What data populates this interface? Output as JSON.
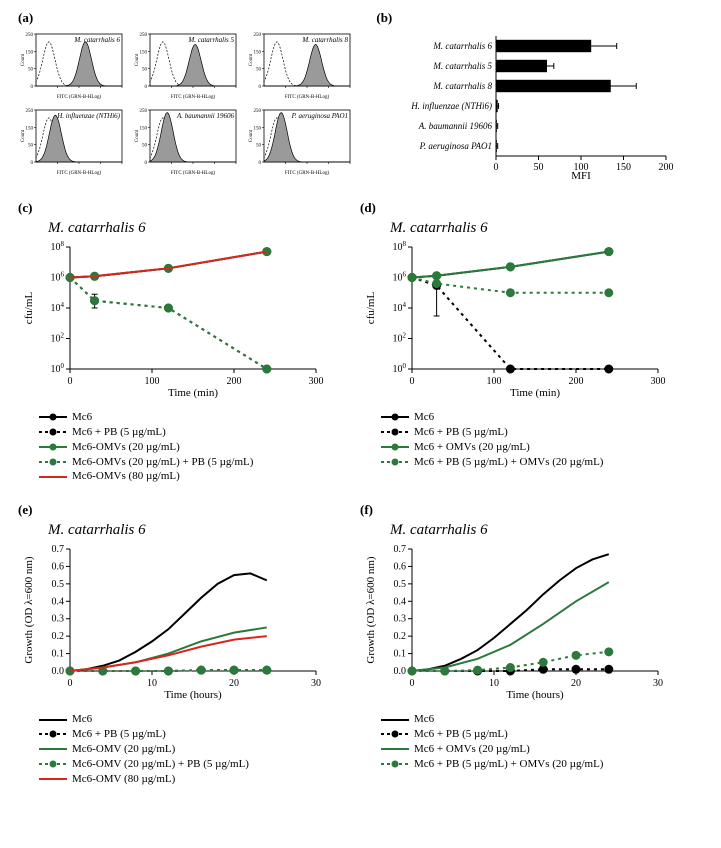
{
  "colors": {
    "black": "#000000",
    "green": "#2b7a3b",
    "red": "#d7261e",
    "hist_fill": "#9a9a9a",
    "hist_stroke": "#000000",
    "axis": "#000000",
    "bar_fill": "#000000"
  },
  "panel_labels": {
    "a": "(a)",
    "b": "(b)",
    "c": "(c)",
    "d": "(d)",
    "e": "(e)",
    "f": "(f)"
  },
  "panel_a": {
    "xlabel": "FITC (GRN-B-HLog)",
    "ylabel": "Count",
    "yticks": [
      "0",
      "50",
      "150",
      "250"
    ],
    "xticks_log": [
      1,
      2,
      3,
      4
    ],
    "strains": [
      {
        "name": "M. catarrhalis 6",
        "italic": true,
        "peak_signal_log": 2.3,
        "peak_signal_height": 0.85,
        "ctrl_log": 0.6
      },
      {
        "name": "M. catarrhalis 5",
        "italic": true,
        "peak_signal_log": 2.1,
        "peak_signal_height": 0.8,
        "ctrl_log": 0.6
      },
      {
        "name": "M. catarrhalis 8",
        "italic": true,
        "peak_signal_log": 2.4,
        "peak_signal_height": 0.8,
        "ctrl_log": 0.6
      },
      {
        "name": "H. influenzae (NTHi6)",
        "italic": true,
        "peak_signal_log": 0.9,
        "peak_signal_height": 0.9,
        "ctrl_log": 0.6
      },
      {
        "name": "A. baumannii 19606",
        "italic": true,
        "peak_signal_log": 0.8,
        "peak_signal_height": 0.95,
        "ctrl_log": 0.6
      },
      {
        "name": "P. aeruginosa PAO1",
        "italic": true,
        "peak_signal_log": 0.8,
        "peak_signal_height": 0.95,
        "ctrl_log": 0.6
      }
    ]
  },
  "panel_b": {
    "xlabel": "MFI",
    "xlim": [
      0,
      200
    ],
    "xticks": [
      0,
      50,
      100,
      150,
      200
    ],
    "categories": [
      {
        "name": "M. catarrhalis 6",
        "mfi": 112,
        "err": 30,
        "italic": true
      },
      {
        "name": "M. catarrhalis 5",
        "mfi": 60,
        "err": 8,
        "italic": true
      },
      {
        "name": "M. catarrhalis 8",
        "mfi": 135,
        "err": 30,
        "italic": true
      },
      {
        "name": "H. influenzae (NTHi6)",
        "mfi": 2,
        "err": 1,
        "italic": true
      },
      {
        "name": "A. baumannii 19606",
        "mfi": 1,
        "err": 1,
        "italic": true
      },
      {
        "name": "P. aeruginosa PAO1",
        "mfi": 1,
        "err": 1,
        "italic": true
      }
    ]
  },
  "panel_c": {
    "title": "M. catarrhalis 6",
    "xlabel": "Time (min)",
    "ylabel": "cfu/mL",
    "xlim": [
      0,
      300
    ],
    "xticks": [
      0,
      100,
      200,
      300
    ],
    "ylog": true,
    "ylim_exp": [
      0,
      8
    ],
    "yticks_exp": [
      0,
      2,
      4,
      6,
      8
    ],
    "series": [
      {
        "key": "mc6",
        "label": "Mc6",
        "color": "black",
        "dash": false,
        "marker": "circle",
        "points": [
          {
            "x": 0,
            "y": 1000000.0
          },
          {
            "x": 30,
            "y": 1200000.0
          },
          {
            "x": 120,
            "y": 4000000.0
          },
          {
            "x": 240,
            "y": 50000000.0
          }
        ]
      },
      {
        "key": "mc6_pb",
        "label": "Mc6 + PB (5 µg/mL)",
        "color": "black",
        "dash": true,
        "marker": "circle",
        "points": [
          {
            "x": 0,
            "y": 1000000.0
          },
          {
            "x": 30,
            "y": 30000.0,
            "ylo": 10000.0,
            "yhi": 80000.0
          },
          {
            "x": 120,
            "y": 10000.0
          },
          {
            "x": 240,
            "y": 1.0
          }
        ]
      },
      {
        "key": "mc6_omv20",
        "label": "Mc6-OMVs (20 µg/mL)",
        "color": "green",
        "dash": false,
        "marker": "circle",
        "points": [
          {
            "x": 0,
            "y": 1000000.0
          },
          {
            "x": 30,
            "y": 1200000.0
          },
          {
            "x": 120,
            "y": 4000000.0
          },
          {
            "x": 240,
            "y": 50000000.0
          }
        ]
      },
      {
        "key": "mc6_omv20_pb",
        "label": "Mc6-OMVs (20 µg/mL) + PB (5 µg/mL)",
        "color": "green",
        "dash": true,
        "marker": "circle",
        "points": [
          {
            "x": 0,
            "y": 1000000.0
          },
          {
            "x": 30,
            "y": 30000.0
          },
          {
            "x": 120,
            "y": 10000.0
          },
          {
            "x": 240,
            "y": 1.0
          }
        ]
      },
      {
        "key": "mc6_omv80",
        "label": "Mc6-OMVs (80 µg/mL)",
        "color": "red",
        "dash": false,
        "marker": "none",
        "points": [
          {
            "x": 0,
            "y": 1000000.0
          },
          {
            "x": 30,
            "y": 1200000.0
          },
          {
            "x": 120,
            "y": 4000000.0
          },
          {
            "x": 240,
            "y": 50000000.0
          }
        ]
      }
    ]
  },
  "panel_d": {
    "title": "M. catarrhalis 6",
    "xlabel": "Time (min)",
    "ylabel": "cfu/mL",
    "xlim": [
      0,
      300
    ],
    "xticks": [
      0,
      100,
      200,
      300
    ],
    "ylog": true,
    "ylim_exp": [
      0,
      8
    ],
    "yticks_exp": [
      0,
      2,
      4,
      6,
      8
    ],
    "series": [
      {
        "key": "mc6",
        "label": "Mc6",
        "color": "black",
        "dash": false,
        "marker": "circle",
        "points": [
          {
            "x": 0,
            "y": 1000000.0
          },
          {
            "x": 30,
            "y": 1300000.0
          },
          {
            "x": 120,
            "y": 5000000.0
          },
          {
            "x": 240,
            "y": 50000000.0
          }
        ]
      },
      {
        "key": "mc6_pb",
        "label": "Mc6 + PB (5 µg/mL)",
        "color": "black",
        "dash": true,
        "marker": "circle",
        "points": [
          {
            "x": 0,
            "y": 1000000.0
          },
          {
            "x": 30,
            "y": 300000.0,
            "ylo": 3000.0,
            "yhi": 1000000.0
          },
          {
            "x": 120,
            "y": 1.0
          },
          {
            "x": 240,
            "y": 1.0
          }
        ]
      },
      {
        "key": "mc6_omv",
        "label": "Mc6 + OMVs (20 µg/mL)",
        "color": "green",
        "dash": false,
        "marker": "circle",
        "points": [
          {
            "x": 0,
            "y": 1000000.0
          },
          {
            "x": 30,
            "y": 1300000.0
          },
          {
            "x": 120,
            "y": 5000000.0
          },
          {
            "x": 240,
            "y": 50000000.0
          }
        ]
      },
      {
        "key": "mc6_pb_omv",
        "label": "Mc6 + PB (5 µg/mL) + OMVs (20 µg/mL)",
        "color": "green",
        "dash": true,
        "marker": "circle",
        "points": [
          {
            "x": 0,
            "y": 1000000.0
          },
          {
            "x": 30,
            "y": 400000.0
          },
          {
            "x": 120,
            "y": 100000.0
          },
          {
            "x": 240,
            "y": 100000.0
          }
        ]
      }
    ]
  },
  "panel_e": {
    "title": "M. catarrhalis 6",
    "xlabel": "Time (hours)",
    "ylabel": "Growth (OD λ=600 nm)",
    "xlim": [
      0,
      30
    ],
    "xticks": [
      0,
      10,
      20,
      30
    ],
    "ylim": [
      0.0,
      0.7
    ],
    "yticks": [
      0.0,
      0.1,
      0.2,
      0.3,
      0.4,
      0.5,
      0.6,
      0.7
    ],
    "series": [
      {
        "key": "mc6",
        "label": "Mc6",
        "color": "black",
        "dash": false,
        "marker": "none",
        "points": [
          {
            "x": 0,
            "y": 0.0
          },
          {
            "x": 2,
            "y": 0.01
          },
          {
            "x": 4,
            "y": 0.03
          },
          {
            "x": 6,
            "y": 0.06
          },
          {
            "x": 8,
            "y": 0.11
          },
          {
            "x": 10,
            "y": 0.17
          },
          {
            "x": 12,
            "y": 0.24
          },
          {
            "x": 14,
            "y": 0.33
          },
          {
            "x": 16,
            "y": 0.42
          },
          {
            "x": 18,
            "y": 0.5
          },
          {
            "x": 20,
            "y": 0.55
          },
          {
            "x": 22,
            "y": 0.56
          },
          {
            "x": 24,
            "y": 0.52
          }
        ]
      },
      {
        "key": "mc6_pb",
        "label": "Mc6 + PB (5 µg/mL)",
        "color": "black",
        "dash": true,
        "marker": "circle",
        "points": [
          {
            "x": 0,
            "y": 0.0
          },
          {
            "x": 4,
            "y": 0.0
          },
          {
            "x": 8,
            "y": 0.0
          },
          {
            "x": 12,
            "y": 0.0
          },
          {
            "x": 16,
            "y": 0.005
          },
          {
            "x": 20,
            "y": 0.005
          },
          {
            "x": 24,
            "y": 0.005
          }
        ]
      },
      {
        "key": "mc6_omv20",
        "label": "Mc6-OMV (20 µg/mL)",
        "color": "green",
        "dash": false,
        "marker": "none",
        "points": [
          {
            "x": 0,
            "y": 0.0
          },
          {
            "x": 4,
            "y": 0.02
          },
          {
            "x": 8,
            "y": 0.05
          },
          {
            "x": 12,
            "y": 0.1
          },
          {
            "x": 16,
            "y": 0.17
          },
          {
            "x": 20,
            "y": 0.22
          },
          {
            "x": 24,
            "y": 0.25
          }
        ]
      },
      {
        "key": "mc6_omv20_pb",
        "label": "Mc6-OMV (20 µg/mL) + PB (5 µg/mL)",
        "color": "green",
        "dash": true,
        "marker": "circle",
        "points": [
          {
            "x": 0,
            "y": 0.0
          },
          {
            "x": 4,
            "y": 0.0
          },
          {
            "x": 8,
            "y": 0.0
          },
          {
            "x": 12,
            "y": 0.0
          },
          {
            "x": 16,
            "y": 0.005
          },
          {
            "x": 20,
            "y": 0.005
          },
          {
            "x": 24,
            "y": 0.005
          }
        ]
      },
      {
        "key": "mc6_omv80",
        "label": "Mc6-OMV (80 µg/mL)",
        "color": "red",
        "dash": false,
        "marker": "none",
        "points": [
          {
            "x": 0,
            "y": 0.0
          },
          {
            "x": 4,
            "y": 0.02
          },
          {
            "x": 8,
            "y": 0.05
          },
          {
            "x": 12,
            "y": 0.09
          },
          {
            "x": 16,
            "y": 0.14
          },
          {
            "x": 20,
            "y": 0.18
          },
          {
            "x": 24,
            "y": 0.2
          }
        ]
      }
    ]
  },
  "panel_f": {
    "title": "M. catarrhalis 6",
    "xlabel": "Time (hours)",
    "ylabel": "Growth (OD λ=600 nm)",
    "xlim": [
      0,
      30
    ],
    "xticks": [
      0,
      10,
      20,
      30
    ],
    "ylim": [
      0.0,
      0.7
    ],
    "yticks": [
      0.0,
      0.1,
      0.2,
      0.3,
      0.4,
      0.5,
      0.6,
      0.7
    ],
    "series": [
      {
        "key": "mc6",
        "label": "Mc6",
        "color": "black",
        "dash": false,
        "marker": "none",
        "points": [
          {
            "x": 0,
            "y": 0.0
          },
          {
            "x": 2,
            "y": 0.01
          },
          {
            "x": 4,
            "y": 0.03
          },
          {
            "x": 6,
            "y": 0.07
          },
          {
            "x": 8,
            "y": 0.12
          },
          {
            "x": 10,
            "y": 0.19
          },
          {
            "x": 12,
            "y": 0.27
          },
          {
            "x": 14,
            "y": 0.35
          },
          {
            "x": 16,
            "y": 0.44
          },
          {
            "x": 18,
            "y": 0.52
          },
          {
            "x": 20,
            "y": 0.59
          },
          {
            "x": 22,
            "y": 0.64
          },
          {
            "x": 24,
            "y": 0.67
          }
        ]
      },
      {
        "key": "mc6_pb",
        "label": "Mc6 + PB (5 µg/mL)",
        "color": "black",
        "dash": true,
        "marker": "circle",
        "points": [
          {
            "x": 0,
            "y": 0.0
          },
          {
            "x": 4,
            "y": 0.0
          },
          {
            "x": 8,
            "y": 0.0
          },
          {
            "x": 12,
            "y": 0.0
          },
          {
            "x": 16,
            "y": 0.01
          },
          {
            "x": 20,
            "y": 0.01
          },
          {
            "x": 24,
            "y": 0.01
          }
        ]
      },
      {
        "key": "mc6_omv",
        "label": "Mc6 + OMVs (20 µg/mL)",
        "color": "green",
        "dash": false,
        "marker": "none",
        "points": [
          {
            "x": 0,
            "y": 0.0
          },
          {
            "x": 4,
            "y": 0.02
          },
          {
            "x": 8,
            "y": 0.07
          },
          {
            "x": 12,
            "y": 0.15
          },
          {
            "x": 16,
            "y": 0.27
          },
          {
            "x": 20,
            "y": 0.4
          },
          {
            "x": 24,
            "y": 0.51
          }
        ]
      },
      {
        "key": "mc6_pb_omv",
        "label": "Mc6 + PB (5 µg/mL) + OMVs (20 µg/mL)",
        "color": "green",
        "dash": true,
        "marker": "circle",
        "points": [
          {
            "x": 0,
            "y": 0.0
          },
          {
            "x": 4,
            "y": 0.0
          },
          {
            "x": 8,
            "y": 0.005
          },
          {
            "x": 12,
            "y": 0.02
          },
          {
            "x": 16,
            "y": 0.05
          },
          {
            "x": 20,
            "y": 0.09
          },
          {
            "x": 24,
            "y": 0.11
          }
        ]
      }
    ]
  }
}
